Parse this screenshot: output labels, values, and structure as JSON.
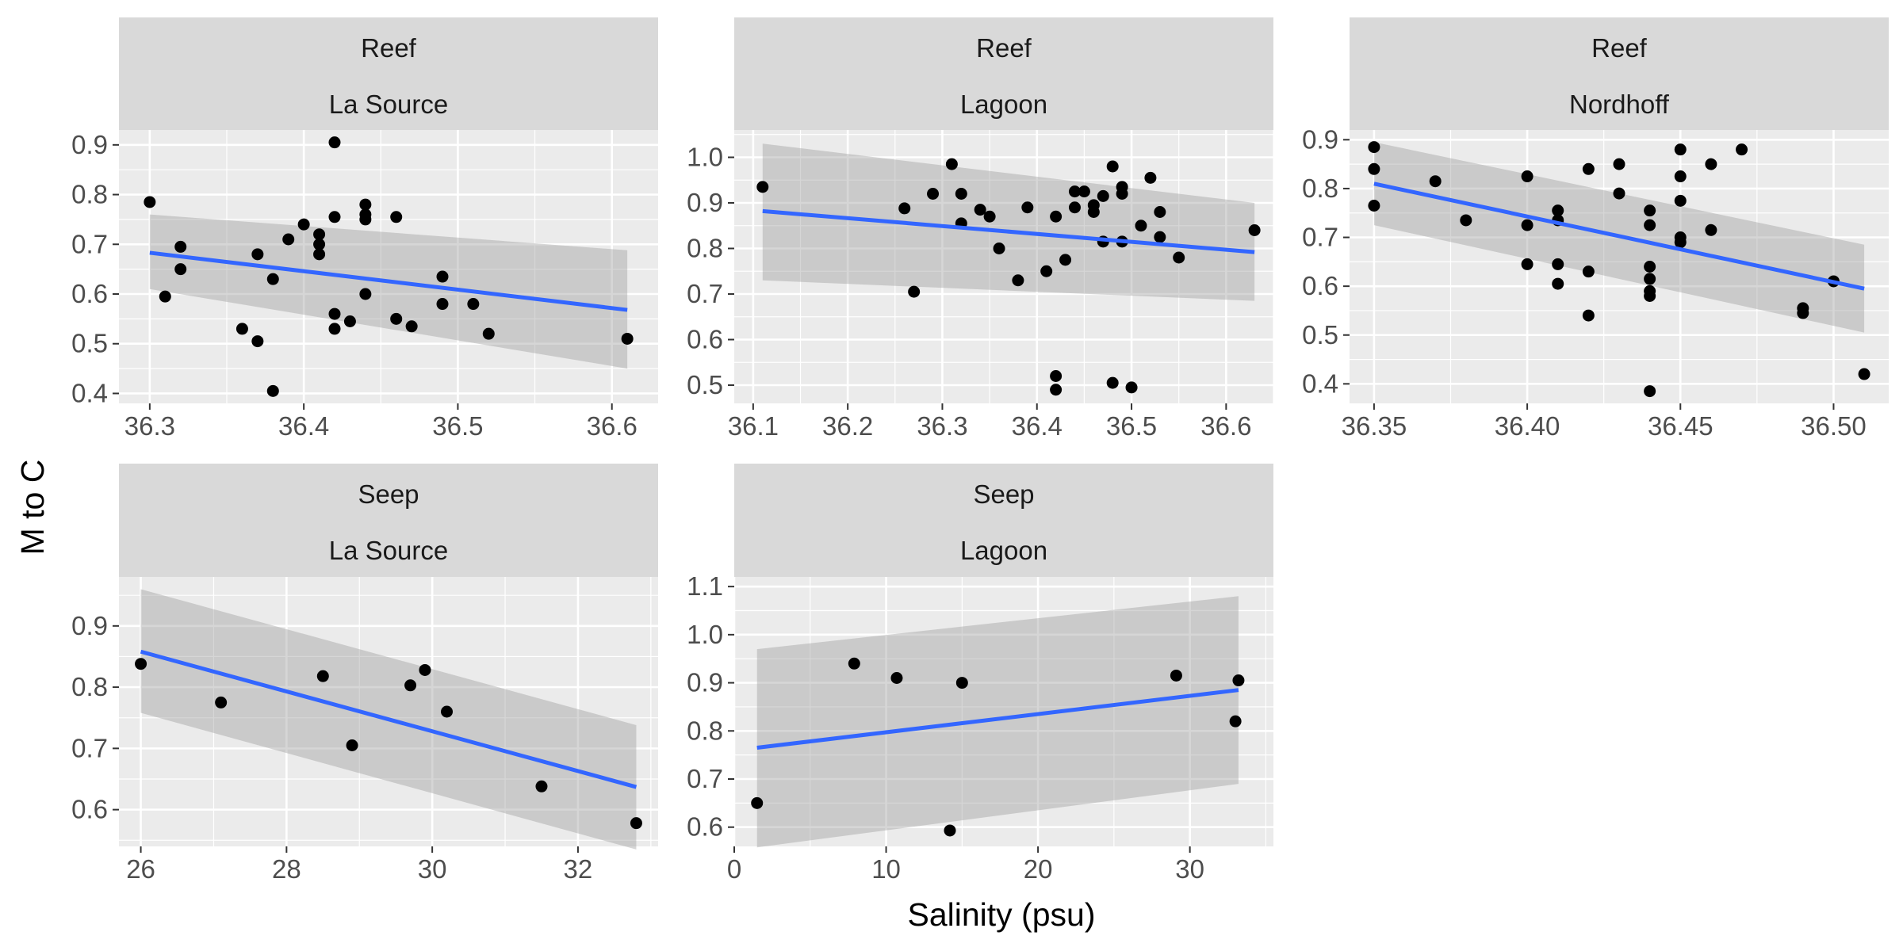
{
  "figure": {
    "xlabel": "Salinity (psu)",
    "ylabel": "M to C",
    "colors": {
      "panel_bg": "#ebebeb",
      "strip_bg": "#d9d9d9",
      "grid": "#ffffff",
      "point": "#000000",
      "fit_line": "#3366ff",
      "ribbon": "#999999"
    }
  },
  "chart_data": [
    {
      "type": "scatter",
      "facet": [
        "Reef",
        "La Source"
      ],
      "xlim": [
        36.28,
        36.63
      ],
      "ylim": [
        0.38,
        0.93
      ],
      "x_ticks": [
        "36.3",
        "36.4",
        "36.5",
        "36.6"
      ],
      "y_ticks": [
        "0.4",
        "0.5",
        "0.6",
        "0.7",
        "0.8",
        "0.9"
      ],
      "points": [
        [
          36.3,
          0.785
        ],
        [
          36.31,
          0.595
        ],
        [
          36.32,
          0.695
        ],
        [
          36.32,
          0.65
        ],
        [
          36.36,
          0.53
        ],
        [
          36.37,
          0.505
        ],
        [
          36.37,
          0.68
        ],
        [
          36.38,
          0.63
        ],
        [
          36.38,
          0.405
        ],
        [
          36.39,
          0.71
        ],
        [
          36.4,
          0.74
        ],
        [
          36.41,
          0.72
        ],
        [
          36.41,
          0.7
        ],
        [
          36.41,
          0.68
        ],
        [
          36.42,
          0.905
        ],
        [
          36.42,
          0.755
        ],
        [
          36.42,
          0.56
        ],
        [
          36.42,
          0.53
        ],
        [
          36.43,
          0.545
        ],
        [
          36.44,
          0.78
        ],
        [
          36.44,
          0.76
        ],
        [
          36.44,
          0.75
        ],
        [
          36.44,
          0.6
        ],
        [
          36.46,
          0.755
        ],
        [
          36.46,
          0.55
        ],
        [
          36.47,
          0.535
        ],
        [
          36.49,
          0.635
        ],
        [
          36.49,
          0.58
        ],
        [
          36.51,
          0.58
        ],
        [
          36.52,
          0.52
        ],
        [
          36.61,
          0.51
        ]
      ],
      "fit": {
        "x": [
          36.3,
          36.61
        ],
        "y": [
          0.683,
          0.568
        ],
        "lower": [
          0.61,
          0.45
        ],
        "upper": [
          0.76,
          0.688
        ]
      }
    },
    {
      "type": "scatter",
      "facet": [
        "Reef",
        "Lagoon"
      ],
      "xlim": [
        36.08,
        36.65
      ],
      "ylim": [
        0.46,
        1.06
      ],
      "x_ticks": [
        "36.1",
        "36.2",
        "36.3",
        "36.4",
        "36.5",
        "36.6"
      ],
      "y_ticks": [
        "0.5",
        "0.6",
        "0.7",
        "0.8",
        "0.9",
        "1.0"
      ],
      "points": [
        [
          36.11,
          0.935
        ],
        [
          36.26,
          0.888
        ],
        [
          36.27,
          0.705
        ],
        [
          36.29,
          0.92
        ],
        [
          36.31,
          0.985
        ],
        [
          36.32,
          0.92
        ],
        [
          36.32,
          0.855
        ],
        [
          36.34,
          0.885
        ],
        [
          36.35,
          0.87
        ],
        [
          36.36,
          0.8
        ],
        [
          36.38,
          0.73
        ],
        [
          36.39,
          0.89
        ],
        [
          36.41,
          0.75
        ],
        [
          36.42,
          0.87
        ],
        [
          36.42,
          0.52
        ],
        [
          36.42,
          0.49
        ],
        [
          36.43,
          0.775
        ],
        [
          36.44,
          0.925
        ],
        [
          36.44,
          0.89
        ],
        [
          36.45,
          0.925
        ],
        [
          36.46,
          0.895
        ],
        [
          36.46,
          0.88
        ],
        [
          36.47,
          0.915
        ],
        [
          36.47,
          0.815
        ],
        [
          36.48,
          0.98
        ],
        [
          36.48,
          0.505
        ],
        [
          36.49,
          0.935
        ],
        [
          36.49,
          0.92
        ],
        [
          36.49,
          0.815
        ],
        [
          36.5,
          0.495
        ],
        [
          36.51,
          0.85
        ],
        [
          36.52,
          0.955
        ],
        [
          36.53,
          0.88
        ],
        [
          36.53,
          0.825
        ],
        [
          36.55,
          0.78
        ],
        [
          36.63,
          0.84
        ]
      ],
      "fit": {
        "x": [
          36.11,
          36.63
        ],
        "y": [
          0.882,
          0.792
        ],
        "lower": [
          0.73,
          0.685
        ],
        "upper": [
          1.03,
          0.9
        ]
      }
    },
    {
      "type": "scatter",
      "facet": [
        "Reef",
        "Nordhoff"
      ],
      "xlim": [
        36.342,
        36.518
      ],
      "ylim": [
        0.36,
        0.92
      ],
      "x_ticks": [
        "36.35",
        "36.40",
        "36.45",
        "36.50"
      ],
      "y_ticks": [
        "0.4",
        "0.5",
        "0.6",
        "0.7",
        "0.8",
        "0.9"
      ],
      "points": [
        [
          36.35,
          0.885
        ],
        [
          36.35,
          0.84
        ],
        [
          36.35,
          0.765
        ],
        [
          36.37,
          0.815
        ],
        [
          36.38,
          0.735
        ],
        [
          36.4,
          0.825
        ],
        [
          36.4,
          0.725
        ],
        [
          36.4,
          0.645
        ],
        [
          36.41,
          0.755
        ],
        [
          36.41,
          0.735
        ],
        [
          36.41,
          0.645
        ],
        [
          36.41,
          0.605
        ],
        [
          36.42,
          0.84
        ],
        [
          36.42,
          0.63
        ],
        [
          36.42,
          0.54
        ],
        [
          36.43,
          0.85
        ],
        [
          36.43,
          0.79
        ],
        [
          36.44,
          0.755
        ],
        [
          36.44,
          0.725
        ],
        [
          36.44,
          0.64
        ],
        [
          36.44,
          0.615
        ],
        [
          36.44,
          0.59
        ],
        [
          36.44,
          0.58
        ],
        [
          36.44,
          0.385
        ],
        [
          36.45,
          0.88
        ],
        [
          36.45,
          0.825
        ],
        [
          36.45,
          0.775
        ],
        [
          36.45,
          0.7
        ],
        [
          36.45,
          0.69
        ],
        [
          36.46,
          0.85
        ],
        [
          36.46,
          0.715
        ],
        [
          36.47,
          0.88
        ],
        [
          36.49,
          0.555
        ],
        [
          36.49,
          0.545
        ],
        [
          36.5,
          0.61
        ],
        [
          36.51,
          0.42
        ]
      ],
      "fit": {
        "x": [
          36.35,
          36.51
        ],
        "y": [
          0.81,
          0.595
        ],
        "lower": [
          0.725,
          0.505
        ],
        "upper": [
          0.895,
          0.685
        ]
      }
    },
    {
      "type": "scatter",
      "facet": [
        "Seep",
        "La Source"
      ],
      "xlim": [
        25.7,
        33.1
      ],
      "ylim": [
        0.54,
        0.98
      ],
      "x_ticks": [
        "26",
        "28",
        "30",
        "32"
      ],
      "y_ticks": [
        "0.6",
        "0.7",
        "0.8",
        "0.9"
      ],
      "points": [
        [
          26.0,
          0.838
        ],
        [
          27.1,
          0.775
        ],
        [
          28.5,
          0.818
        ],
        [
          28.9,
          0.705
        ],
        [
          29.7,
          0.803
        ],
        [
          29.9,
          0.828
        ],
        [
          30.2,
          0.76
        ],
        [
          31.5,
          0.638
        ],
        [
          32.8,
          0.578
        ]
      ],
      "fit": {
        "x": [
          26.0,
          32.8
        ],
        "y": [
          0.858,
          0.637
        ],
        "lower": [
          0.758,
          0.535
        ],
        "upper": [
          0.96,
          0.738
        ]
      }
    },
    {
      "type": "scatter",
      "facet": [
        "Seep",
        "Lagoon"
      ],
      "xlim": [
        0,
        35.5
      ],
      "ylim": [
        0.56,
        1.12
      ],
      "x_ticks": [
        "0",
        "10",
        "20",
        "30"
      ],
      "y_ticks": [
        "0.6",
        "0.7",
        "0.8",
        "0.9",
        "1.0",
        "1.1"
      ],
      "points": [
        [
          1.5,
          0.65
        ],
        [
          7.9,
          0.94
        ],
        [
          10.7,
          0.91
        ],
        [
          14.2,
          0.593
        ],
        [
          15.0,
          0.9
        ],
        [
          29.1,
          0.915
        ],
        [
          33.0,
          0.82
        ],
        [
          33.2,
          0.905
        ]
      ],
      "fit": {
        "x": [
          1.5,
          33.2
        ],
        "y": [
          0.765,
          0.885
        ],
        "lower": [
          0.558,
          0.69
        ],
        "upper": [
          0.97,
          1.08
        ]
      }
    }
  ]
}
